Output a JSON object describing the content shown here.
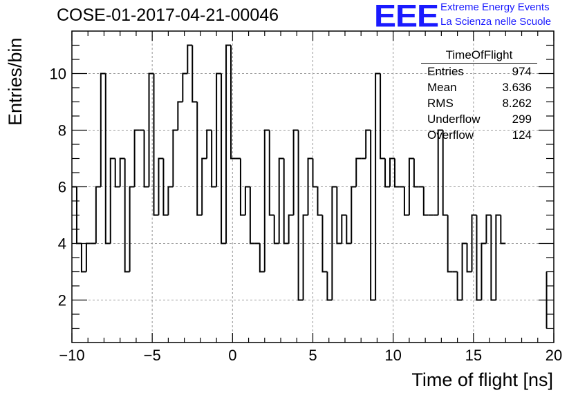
{
  "header": {
    "run_title": "COSE-01-2017-04-21-00046",
    "logo_mark": "EEE",
    "logo_line1": "Extreme Energy Events",
    "logo_line2": "La Scienza nelle Scuole"
  },
  "stats_box": {
    "title": "TimeOfFlight",
    "rows": [
      {
        "label": "Entries",
        "value": "974"
      },
      {
        "label": "Mean",
        "value": "3.636"
      },
      {
        "label": "RMS",
        "value": "8.262"
      },
      {
        "label": "Underflow",
        "value": "299"
      },
      {
        "label": "Overflow",
        "value": "124"
      }
    ]
  },
  "chart_data": {
    "type": "histogram",
    "xlabel": "Time of flight [ns]",
    "ylabel": "Entries/bin",
    "xlim": [
      -10,
      20
    ],
    "ylim": [
      0.5,
      11.5
    ],
    "x_ticks": [
      -10,
      -5,
      0,
      5,
      10,
      15,
      20
    ],
    "x_tick_labels": [
      "−10",
      "−5",
      "0",
      "5",
      "10",
      "15",
      "20"
    ],
    "y_ticks": [
      2,
      4,
      6,
      8,
      10
    ],
    "y_tick_labels": [
      "2",
      "4",
      "6",
      "8",
      "10"
    ],
    "grid": true,
    "bin_edges_start": -10,
    "bin_width": 0.3,
    "values": [
      6,
      4,
      3,
      4,
      4,
      6,
      10,
      4,
      7,
      6,
      7,
      3,
      6,
      8,
      8,
      6,
      10,
      5,
      7,
      5,
      6,
      8,
      9,
      10,
      11,
      9,
      5,
      7,
      8,
      6,
      10,
      4,
      11,
      7,
      7,
      5,
      6,
      4,
      4,
      3,
      8,
      5,
      4,
      7,
      4,
      5,
      8,
      2,
      5,
      7,
      6,
      5,
      3,
      2,
      6,
      4,
      5,
      4,
      6,
      7,
      7,
      8,
      2,
      10,
      7,
      6,
      7,
      6,
      6,
      5,
      7,
      6,
      6,
      5,
      5,
      5,
      8,
      5,
      3,
      3,
      2,
      4,
      3,
      5,
      2,
      4,
      5,
      2,
      5,
      4
    ],
    "final_error_bar": {
      "x": 19.55,
      "low": 1.0,
      "high": 3.0
    }
  }
}
